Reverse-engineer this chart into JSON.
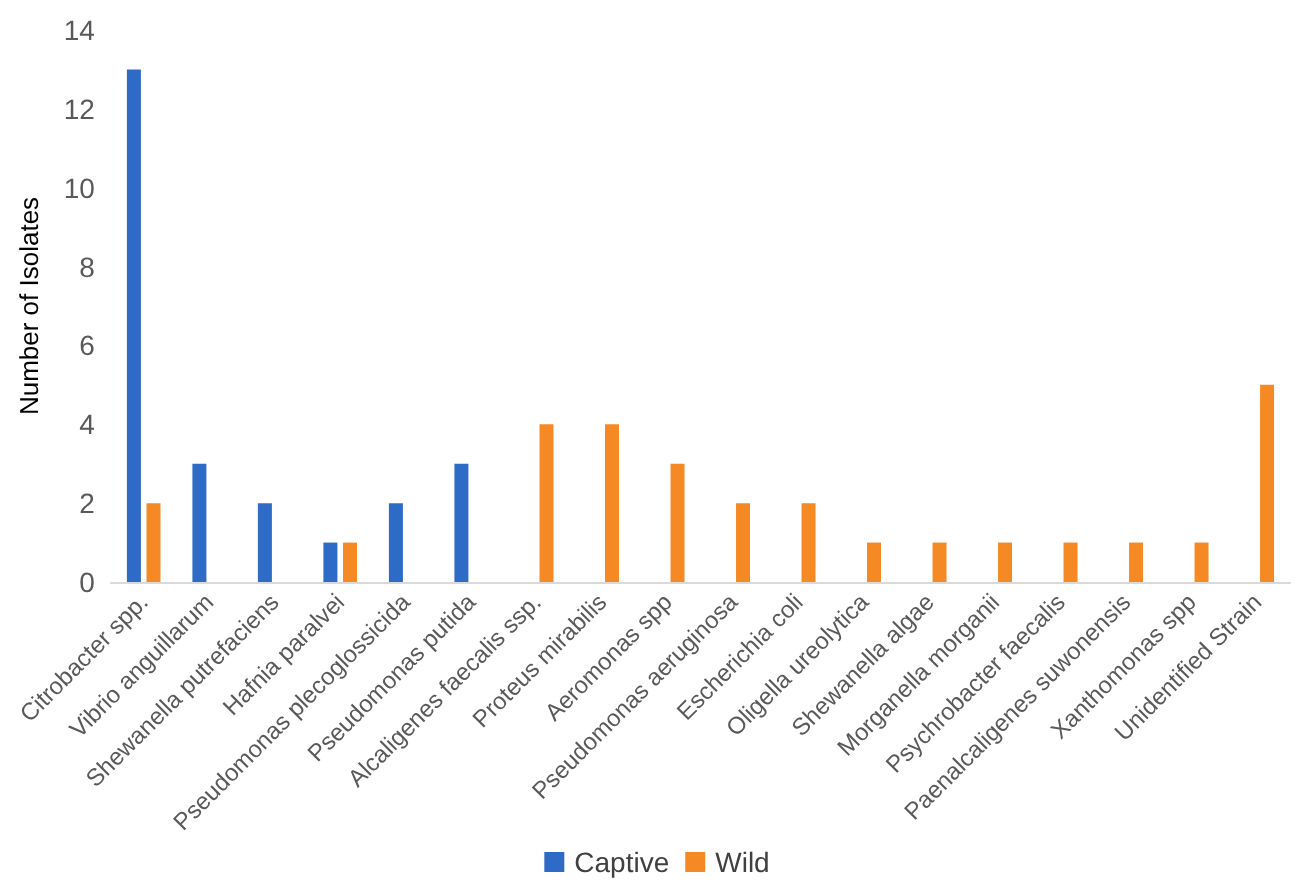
{
  "chart_data": {
    "type": "bar",
    "ylabel": "Number of Isolates",
    "categories": [
      "Citrobacter spp.",
      "Vibrio anguillarum",
      "Shewanella putrefaciens",
      "Hafnia paralvei",
      "Pseudomonas plecoglossicida",
      "Pseudomonas putida",
      "Alcaligenes faecalis ssp.",
      "Proteus mirabilis",
      "Aeromonas spp",
      "Pseudomonas aeruginosa",
      "Escherichia coli",
      "Oligella ureolytica",
      "Shewanella algae",
      "Morganella morganii",
      "Psychrobacter faecalis",
      "Paenalcaligenes suwonensis",
      "Xanthomonas spp",
      "Unidentified Strain"
    ],
    "series": [
      {
        "name": "Captive",
        "color": "#2e6bc6",
        "values": [
          13,
          3,
          2,
          1,
          2,
          3,
          0,
          0,
          0,
          0,
          0,
          0,
          0,
          0,
          0,
          0,
          0,
          0
        ]
      },
      {
        "name": "Wild",
        "color": "#f58a25",
        "values": [
          2,
          0,
          0,
          1,
          0,
          0,
          4,
          4,
          3,
          2,
          2,
          1,
          1,
          1,
          1,
          1,
          1,
          5
        ]
      }
    ],
    "ylim": [
      0,
      14
    ],
    "yticks": [
      0,
      2,
      4,
      6,
      8,
      10,
      12,
      14
    ],
    "legend": "bottom"
  }
}
